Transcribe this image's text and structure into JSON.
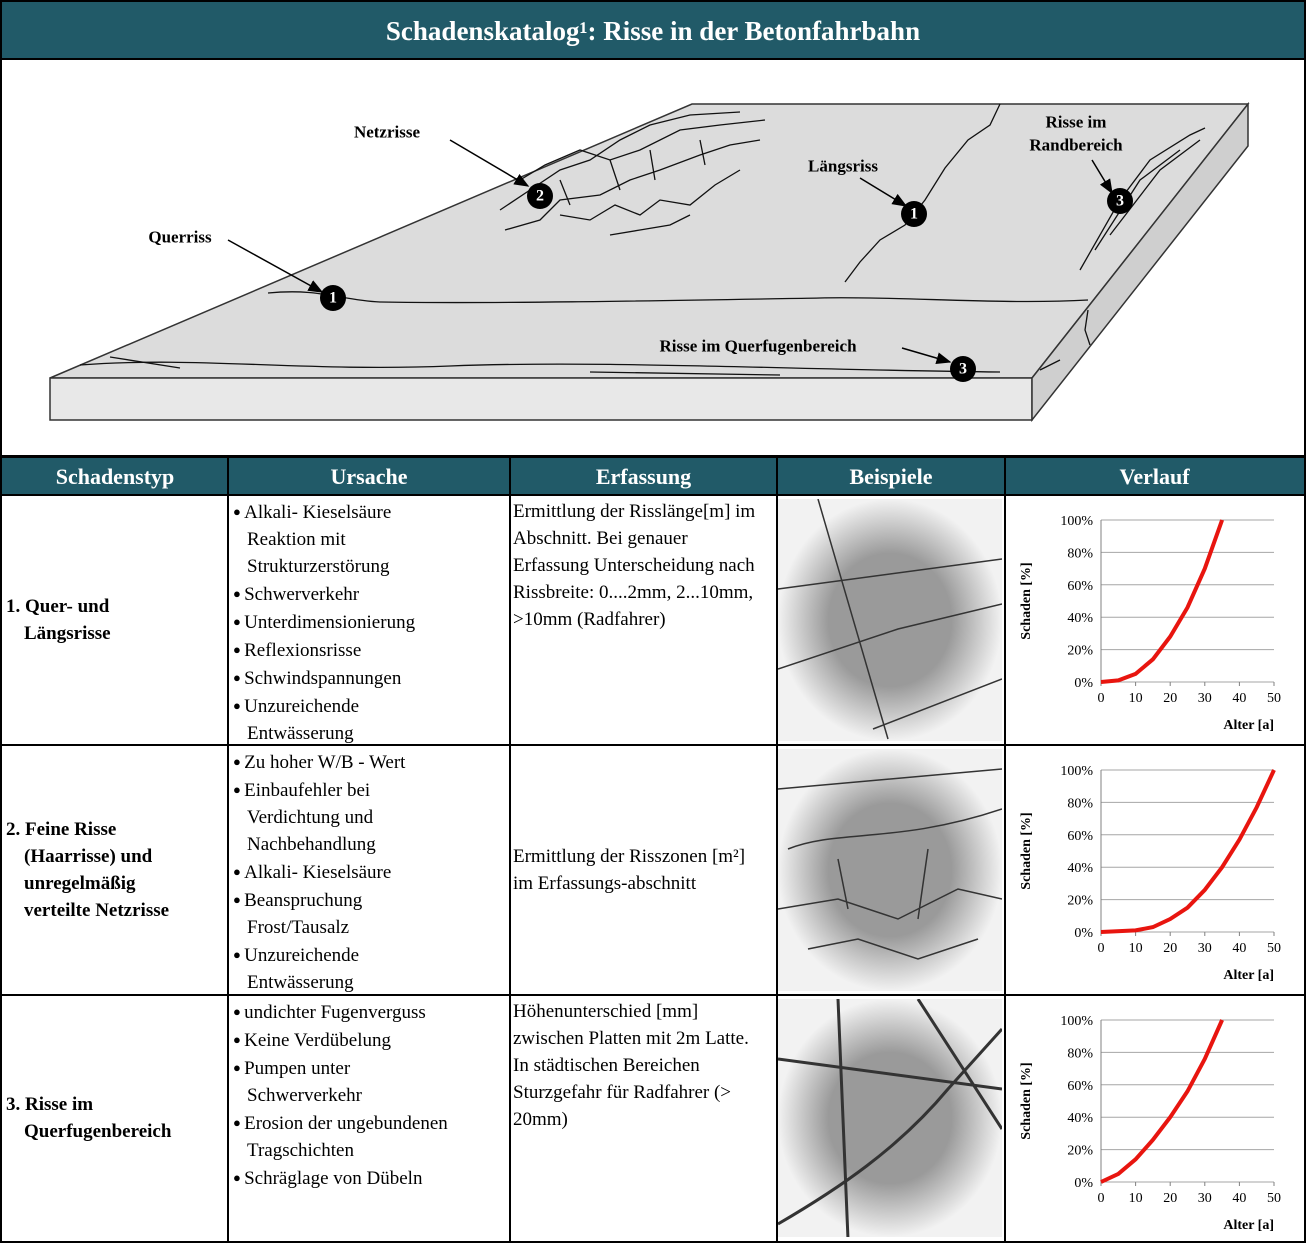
{
  "header": {
    "title": "Schadenskatalog¹: Risse in der Betonfahrbahn"
  },
  "diagram": {
    "labels": {
      "netzrisse": "Netzrisse",
      "querriss": "Querriss",
      "laengsriss": "Längsriss",
      "randbereich": [
        "Risse im",
        "Randbereich"
      ],
      "querfugen": "Risse im Querfugenbereich"
    },
    "markers": [
      "1",
      "2",
      "1",
      "3",
      "3"
    ]
  },
  "table": {
    "columns": [
      "Schadenstyp",
      "Ursache",
      "Erfassung",
      "Beispiele",
      "Verlauf"
    ],
    "rows": [
      {
        "schadenstyp": [
          "1. Quer- und",
          "Längsrisse"
        ],
        "ursache": [
          "Alkali- Kieselsäure Reaktion mit Strukturzerstörung",
          "Schwerverkehr",
          "Unterdimensionierung",
          "Reflexionsrisse",
          "Schwindspannungen",
          "Unzureichende Entwässerung"
        ],
        "erfassung": "Ermittlung der Risslänge[m] im Abschnitt. Bei genauer Erfassung Unterscheidung nach Rissbreite: 0....2mm, 2...10mm, >10mm (Radfahrer)",
        "verlauf": {
          "type": "line",
          "ylabel": "Schaden  [%]",
          "xlabel": "Alter [a]",
          "color": "#e8150f",
          "x": [
            0,
            5,
            10,
            15,
            20,
            25,
            30,
            35
          ],
          "values": [
            0,
            1,
            5,
            14,
            28,
            46,
            70,
            100
          ],
          "xlim": [
            0,
            50
          ],
          "ylim": [
            0,
            100
          ],
          "xticks": [
            0,
            10,
            20,
            30,
            40,
            50
          ],
          "yticks": [
            {
              "value": 0,
              "label": "0%"
            },
            {
              "value": 20,
              "label": "20%"
            },
            {
              "value": 40,
              "label": "40%"
            },
            {
              "value": 60,
              "label": "60%"
            },
            {
              "value": 80,
              "label": "80%"
            },
            {
              "value": 100,
              "label": "100%"
            }
          ]
        }
      },
      {
        "schadenstyp": [
          "2. Feine Risse",
          "(Haarrisse) und",
          "unregelmäßig",
          "verteilte Netzrisse"
        ],
        "ursache": [
          "Zu hoher W/B - Wert",
          "Einbaufehler bei Verdichtung und Nachbehandlung",
          "Alkali- Kieselsäure",
          "Beanspruchung Frost/Tausalz",
          "Unzureichende Entwässerung"
        ],
        "erfassung": "Ermittlung der Risszonen [m²] im Erfassungs-abschnitt",
        "verlauf": {
          "type": "line",
          "ylabel": "Schaden  [%]",
          "xlabel": "Alter [a]",
          "color": "#e8150f",
          "x": [
            0,
            10,
            15,
            20,
            25,
            30,
            35,
            40,
            45,
            50
          ],
          "values": [
            0,
            1,
            3,
            8,
            15,
            26,
            40,
            57,
            77,
            100
          ],
          "xlim": [
            0,
            50
          ],
          "ylim": [
            0,
            100
          ],
          "xticks": [
            0,
            10,
            20,
            30,
            40,
            50
          ],
          "yticks": [
            {
              "value": 0,
              "label": "0%"
            },
            {
              "value": 20,
              "label": "20%"
            },
            {
              "value": 40,
              "label": "40%"
            },
            {
              "value": 60,
              "label": "60%"
            },
            {
              "value": 80,
              "label": "80%"
            },
            {
              "value": 100,
              "label": "100%"
            }
          ]
        }
      },
      {
        "schadenstyp": [
          "3. Risse im",
          "Querfugenbereich"
        ],
        "ursache": [
          "undichter Fugenverguss",
          "Keine Verdübelung",
          "Pumpen unter Schwerverkehr",
          "Erosion der ungebundenen Tragschichten",
          "Schräglage von Dübeln"
        ],
        "erfassung": "Höhenunterschied  [mm] zwischen Platten mit 2m Latte.  In städtischen Bereichen Sturzgefahr für Radfahrer (> 20mm)",
        "verlauf": {
          "type": "line",
          "ylabel": "Schaden  [%]",
          "xlabel": "Alter [a]",
          "color": "#e8150f",
          "x": [
            0,
            5,
            10,
            15,
            20,
            25,
            30,
            35
          ],
          "values": [
            0,
            5,
            14,
            26,
            40,
            56,
            76,
            100
          ],
          "xlim": [
            0,
            50
          ],
          "ylim": [
            0,
            100
          ],
          "xticks": [
            0,
            10,
            20,
            30,
            40,
            50
          ],
          "yticks": [
            {
              "value": 0,
              "label": "0%"
            },
            {
              "value": 20,
              "label": "20%"
            },
            {
              "value": 40,
              "label": "40%"
            },
            {
              "value": 60,
              "label": "60%"
            },
            {
              "value": 80,
              "label": "80%"
            },
            {
              "value": 100,
              "label": "100%"
            }
          ]
        }
      }
    ]
  }
}
